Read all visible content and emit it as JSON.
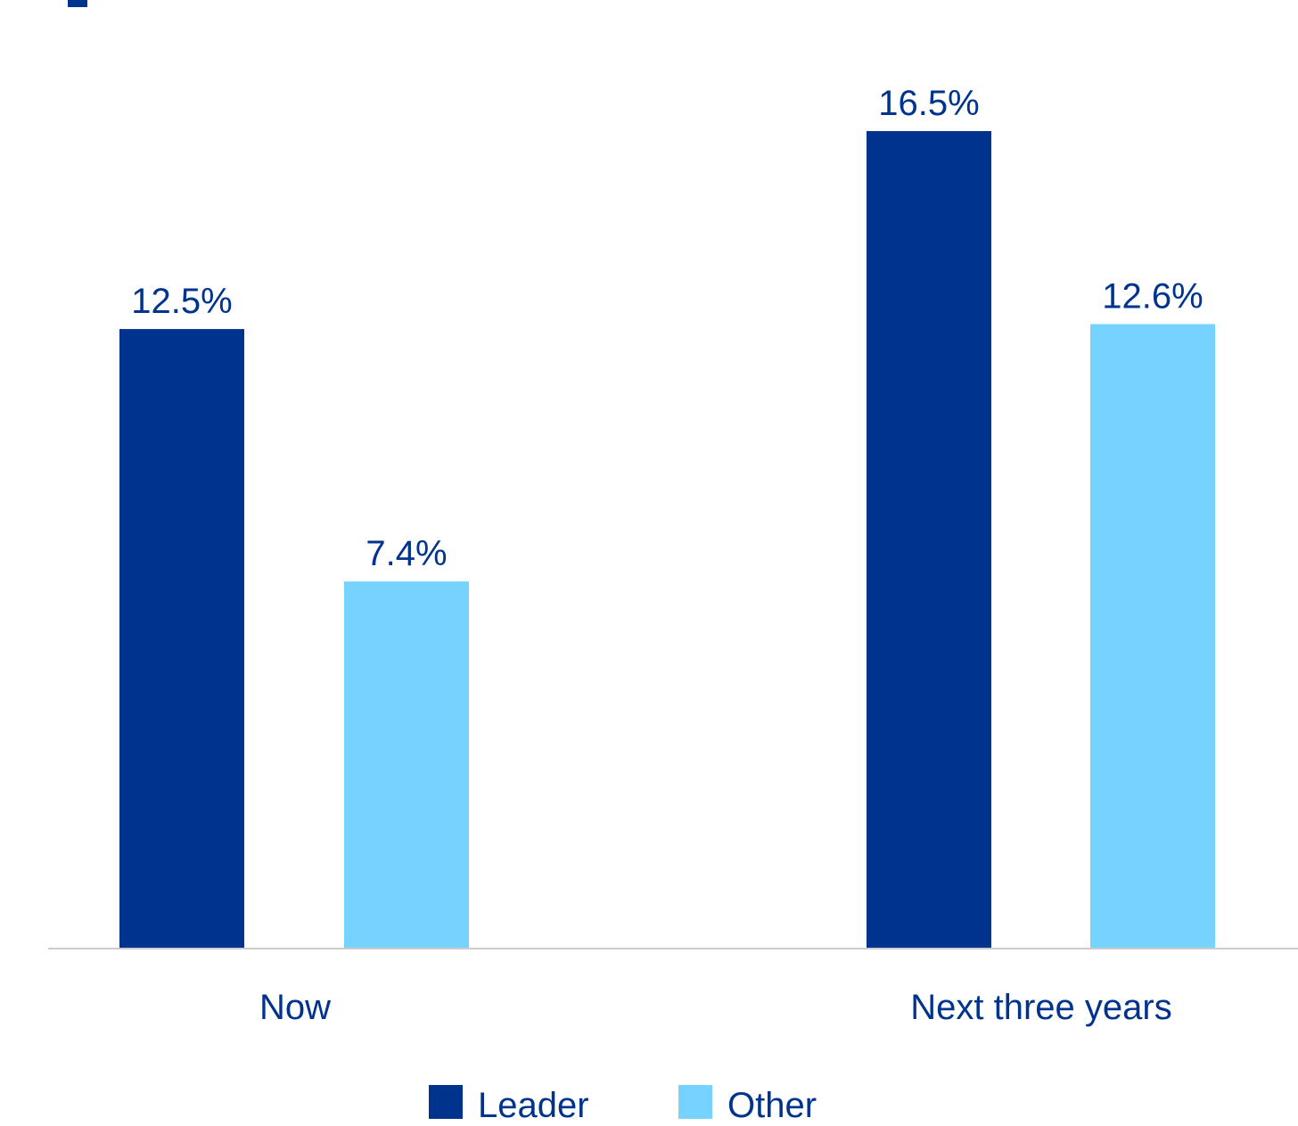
{
  "chart_data": {
    "type": "bar",
    "title": "",
    "xlabel": "",
    "ylabel": "",
    "categories": [
      "Now",
      "Next three years"
    ],
    "series": [
      {
        "name": "Leader",
        "values": [
          12.5,
          16.5
        ],
        "labels": [
          "12.5%",
          "16.5%"
        ],
        "color": "#00338D"
      },
      {
        "name": "Other",
        "values": [
          7.4,
          12.6
        ],
        "labels": [
          "7.4%",
          "12.6%"
        ],
        "color": "#76D2FF"
      }
    ],
    "ylim": [
      0,
      18.5
    ],
    "grid": false,
    "legend_position": "bottom"
  },
  "colors": {
    "label_text": "#00338D",
    "axis_line": "#cccccc",
    "header_accent": "#00338D"
  }
}
